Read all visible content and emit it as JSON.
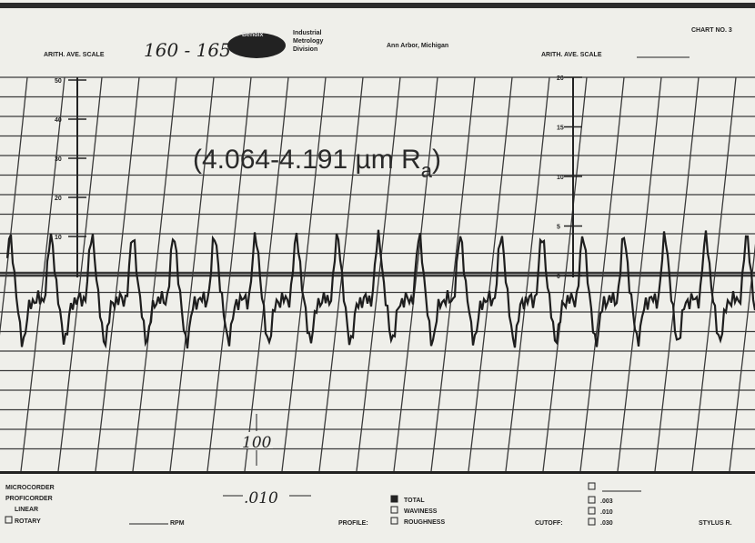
{
  "header": {
    "scale_label_left": "ARITH. AVE. SCALE",
    "scale_value_left": "160 - 165",
    "brand": "Bendix",
    "division": [
      "Industrial",
      "Metrology",
      "Division"
    ],
    "location": "Ann Arbor, Michigan",
    "scale_label_right": "ARITH. AVE. SCALE",
    "chart_no": "CHART NO. 3"
  },
  "scales": {
    "left": [
      "50",
      "40",
      "30",
      "20",
      "10"
    ],
    "right": [
      "20",
      "15",
      "10",
      "5",
      "0"
    ]
  },
  "annotation": {
    "text": "(4.064-4.191  µm  R",
    "subscript": "a",
    "close": ")"
  },
  "handwritten": {
    "vertical": "100",
    "horizontal": ".010"
  },
  "footer": {
    "instruments": [
      "MICROCORDER",
      "PROFICORDER",
      "LINEAR",
      "ROTARY"
    ],
    "rpm": "RPM",
    "profile_label": "PROFILE:",
    "profile_options": [
      "TOTAL",
      "WAVINESS",
      "ROUGHNESS"
    ],
    "cutoff_label": "CUTOFF:",
    "cutoff_options": [
      ".003",
      ".010",
      ".030"
    ],
    "stylus": "STYLUS R."
  }
}
